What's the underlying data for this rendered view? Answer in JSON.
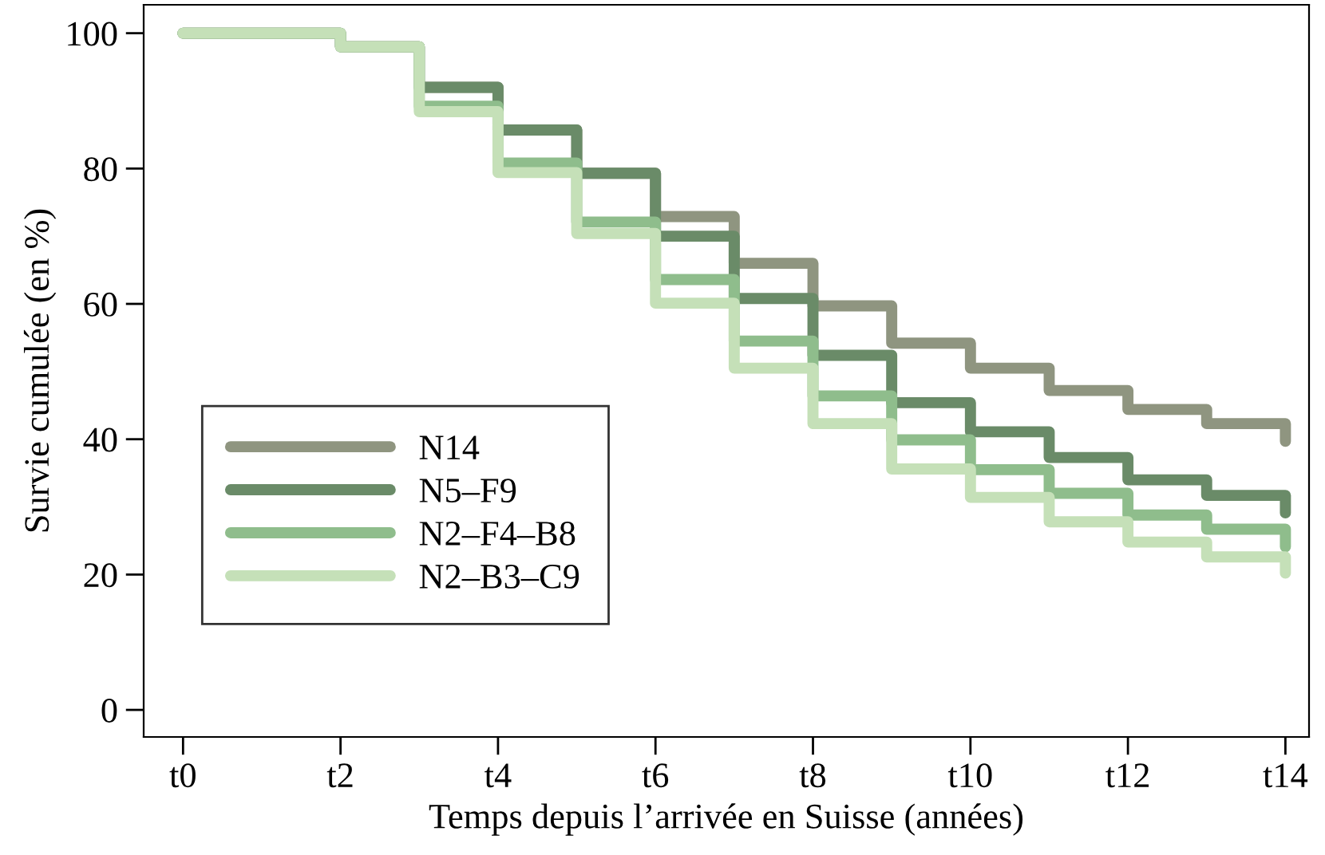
{
  "chart_data": {
    "type": "step",
    "xlabel": "Temps depuis l’arrivée en Suisse (années)",
    "ylabel": "Survie cumulée (en %)",
    "categories": [
      "t0",
      null,
      "t2",
      null,
      "t4",
      null,
      "t6",
      null,
      "t8",
      null,
      "t10",
      null,
      "t12",
      null,
      "t14"
    ],
    "series": [
      {
        "name": "N14",
        "color": "#8f9580",
        "values": [
          100,
          100,
          98,
          92,
          85.7,
          79.3,
          72.9,
          66,
          59.7,
          54.2,
          50.5,
          47.2,
          44.4,
          42.3,
          39.7
        ]
      },
      {
        "name": "N5–F9",
        "color": "#6a8b68",
        "values": [
          100,
          100,
          98,
          92,
          85.7,
          79.3,
          70,
          60.8,
          52.4,
          45.4,
          41.1,
          37.3,
          34,
          31.7,
          29.1
        ]
      },
      {
        "name": "N2–F4–B8",
        "color": "#8fbd8c",
        "values": [
          100,
          100,
          98,
          89.2,
          80.8,
          72.1,
          63.6,
          54.5,
          46.4,
          39.9,
          35.5,
          32,
          28.8,
          26.7,
          24.1
        ]
      },
      {
        "name": "N2–B3–C9",
        "color": "#c5e0b8",
        "values": [
          100,
          100,
          98,
          88.4,
          79.4,
          70.4,
          60.1,
          50.5,
          42.3,
          35.6,
          31.4,
          27.8,
          24.8,
          22.6,
          20.2
        ]
      }
    ],
    "ylim": [
      -4,
      104.2
    ],
    "yticks": [
      0,
      20,
      40,
      60,
      80,
      100
    ],
    "legend": "bottom left",
    "grid": false
  }
}
